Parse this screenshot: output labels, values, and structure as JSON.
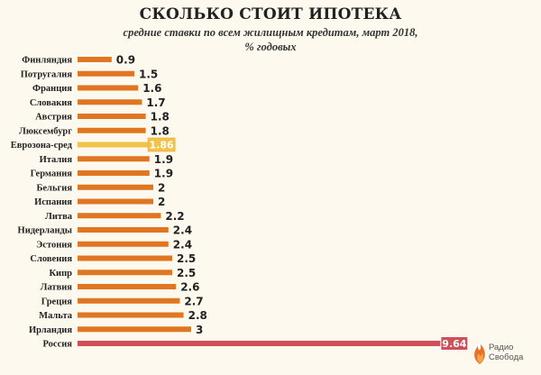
{
  "header": {
    "title": "СКОЛЬКО СТОИТ ИПОТЕКА",
    "subtitle_line1": "средние ставки по всем жилищным кредитам, март 2018,",
    "subtitle_line2": "% годовых"
  },
  "logo": {
    "line1": "Радио",
    "line2": "Свобода"
  },
  "colors": {
    "bar": "#e07522",
    "highlight": "#f2c24a",
    "russia": "#d0505a",
    "background": "#fdf9ee"
  },
  "chart_data": {
    "type": "bar",
    "orientation": "horizontal",
    "categories": [
      "Финляндия",
      "Потругалия",
      "Франция",
      "Словакия",
      "Австрия",
      "Люксембург",
      "Еврозона-сред",
      "Италия",
      "Германия",
      "Бельгия",
      "Испания",
      "Литва",
      "Нидерланды",
      "Эстония",
      "Словения",
      "Кипр",
      "Латвия",
      "Греция",
      "Мальта",
      "Ирландия",
      "Россия"
    ],
    "values": [
      0.9,
      1.5,
      1.6,
      1.7,
      1.8,
      1.8,
      1.86,
      1.9,
      1.9,
      2,
      2,
      2.2,
      2.4,
      2.4,
      2.5,
      2.5,
      2.6,
      2.7,
      2.8,
      3,
      9.64
    ],
    "value_labels": [
      "0.9",
      "1.5",
      "1.6",
      "1.7",
      "1.8",
      "1.8",
      "1.86",
      "1.9",
      "1.9",
      "2",
      "2",
      "2.2",
      "2.4",
      "2.4",
      "2.5",
      "2.5",
      "2.6",
      "2.7",
      "2.8",
      "3",
      "9.64"
    ],
    "highlighted": [
      "Еврозона-сред",
      "Россия"
    ],
    "grid": false,
    "legend": "none"
  }
}
